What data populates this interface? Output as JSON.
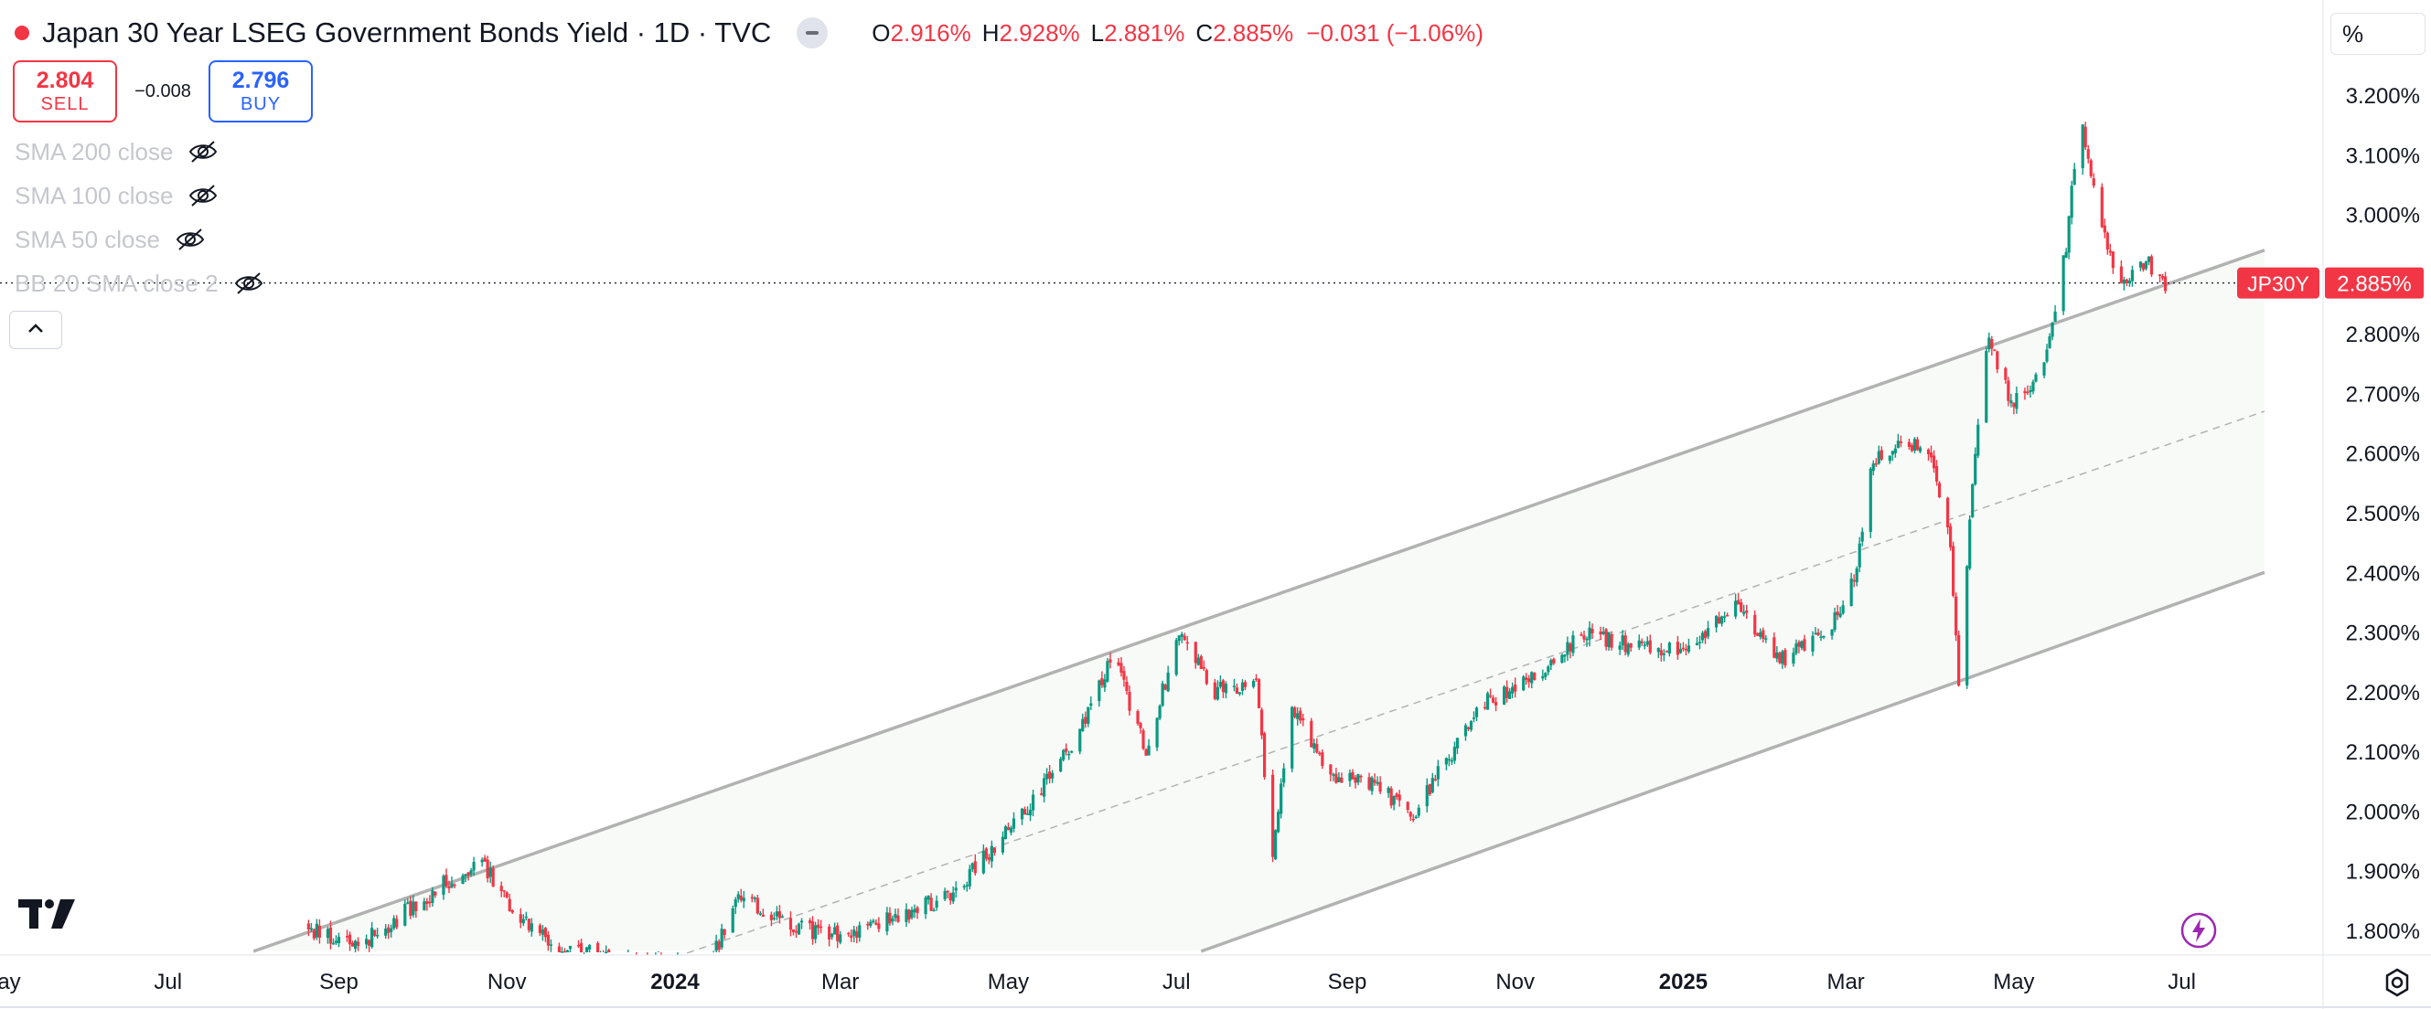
{
  "header": {
    "title": "Japan 30 Year LSEG Government Bonds Yield · 1D · TVC",
    "ohlc": [
      {
        "key": "O",
        "value": "2.916%"
      },
      {
        "key": "H",
        "value": "2.928%"
      },
      {
        "key": "L",
        "value": "2.881%"
      },
      {
        "key": "C",
        "value": "2.885%"
      }
    ],
    "change": "−0.031 (−1.06%)"
  },
  "trade": {
    "sell_price": "2.804",
    "sell_label": "SELL",
    "spread": "−0.008",
    "buy_price": "2.796",
    "buy_label": "BUY"
  },
  "indicators": [
    {
      "label": "SMA 200 close"
    },
    {
      "label": "SMA 100 close"
    },
    {
      "label": "SMA 50 close"
    },
    {
      "label": "BB 20 SMA close 2"
    }
  ],
  "axis_unit": "%",
  "colors": {
    "up": "#089981",
    "down": "#f23645",
    "channel": "#b2b2b2",
    "fill": "#f8faf8"
  },
  "icons": {
    "logo": "tradingview-logo-icon",
    "alert": "lightning-icon",
    "settings": "gear-icon"
  },
  "chart_data": {
    "type": "candlestick",
    "symbol_label": "JP30Y",
    "last_price_label": "2.885%",
    "last_price": 2.885,
    "x_range": [
      "2023-05-01",
      "2025-07-31"
    ],
    "ylim": [
      1.74,
      3.22
    ],
    "y_ticks": [
      {
        "value": 3.2,
        "label": "3.200%"
      },
      {
        "value": 3.1,
        "label": "3.100%"
      },
      {
        "value": 3.0,
        "label": "3.000%"
      },
      {
        "value": 2.8,
        "label": "2.800%"
      },
      {
        "value": 2.7,
        "label": "2.700%"
      },
      {
        "value": 2.6,
        "label": "2.600%"
      },
      {
        "value": 2.5,
        "label": "2.500%"
      },
      {
        "value": 2.4,
        "label": "2.400%"
      },
      {
        "value": 2.3,
        "label": "2.300%"
      },
      {
        "value": 2.2,
        "label": "2.200%"
      },
      {
        "value": 2.1,
        "label": "2.100%"
      },
      {
        "value": 2.0,
        "label": "2.000%"
      },
      {
        "value": 1.9,
        "label": "1.900%"
      },
      {
        "value": 1.8,
        "label": "1.800%"
      }
    ],
    "x_ticks": [
      {
        "date": "2023-05-01",
        "label": "May",
        "bold": false
      },
      {
        "date": "2023-07-01",
        "label": "Jul",
        "bold": false
      },
      {
        "date": "2023-09-01",
        "label": "Sep",
        "bold": false
      },
      {
        "date": "2023-11-01",
        "label": "Nov",
        "bold": false
      },
      {
        "date": "2024-01-01",
        "label": "2024",
        "bold": true
      },
      {
        "date": "2024-03-01",
        "label": "Mar",
        "bold": false
      },
      {
        "date": "2024-05-01",
        "label": "May",
        "bold": false
      },
      {
        "date": "2024-07-01",
        "label": "Jul",
        "bold": false
      },
      {
        "date": "2024-09-01",
        "label": "Sep",
        "bold": false
      },
      {
        "date": "2024-11-01",
        "label": "Nov",
        "bold": false
      },
      {
        "date": "2025-01-01",
        "label": "2025",
        "bold": true
      },
      {
        "date": "2025-03-01",
        "label": "Mar",
        "bold": false
      },
      {
        "date": "2025-05-01",
        "label": "May",
        "bold": false
      },
      {
        "date": "2025-07-01",
        "label": "Jul",
        "bold": false
      }
    ],
    "channel": {
      "upper": [
        {
          "date": "2023-08-01",
          "y": 1.765
        },
        {
          "date": "2025-07-31",
          "y": 2.94
        }
      ],
      "mid": [
        {
          "date": "2024-01-01",
          "y": 1.755
        },
        {
          "date": "2025-07-31",
          "y": 2.67
        }
      ],
      "lower": [
        {
          "date": "2024-07-10",
          "y": 1.765
        },
        {
          "date": "2025-07-31",
          "y": 2.4
        }
      ]
    },
    "price_anchors": [
      {
        "date": "2023-08-20",
        "y": 1.8
      },
      {
        "date": "2023-09-10",
        "y": 1.78
      },
      {
        "date": "2023-10-01",
        "y": 1.85
      },
      {
        "date": "2023-10-22",
        "y": 1.92
      },
      {
        "date": "2023-11-03",
        "y": 1.84
      },
      {
        "date": "2023-11-20",
        "y": 1.77
      },
      {
        "date": "2023-12-15",
        "y": 1.75
      },
      {
        "date": "2024-01-12",
        "y": 1.73
      },
      {
        "date": "2024-01-25",
        "y": 1.86
      },
      {
        "date": "2024-02-10",
        "y": 1.81
      },
      {
        "date": "2024-03-01",
        "y": 1.79
      },
      {
        "date": "2024-03-20",
        "y": 1.82
      },
      {
        "date": "2024-04-10",
        "y": 1.86
      },
      {
        "date": "2024-04-28",
        "y": 1.95
      },
      {
        "date": "2024-05-15",
        "y": 2.05
      },
      {
        "date": "2024-05-28",
        "y": 2.14
      },
      {
        "date": "2024-06-08",
        "y": 2.26
      },
      {
        "date": "2024-06-20",
        "y": 2.1
      },
      {
        "date": "2024-07-02",
        "y": 2.3
      },
      {
        "date": "2024-07-15",
        "y": 2.2
      },
      {
        "date": "2024-07-30",
        "y": 2.22
      },
      {
        "date": "2024-08-05",
        "y": 1.92
      },
      {
        "date": "2024-08-12",
        "y": 2.18
      },
      {
        "date": "2024-08-25",
        "y": 2.06
      },
      {
        "date": "2024-09-10",
        "y": 2.05
      },
      {
        "date": "2024-09-25",
        "y": 1.99
      },
      {
        "date": "2024-10-05",
        "y": 2.07
      },
      {
        "date": "2024-10-20",
        "y": 2.18
      },
      {
        "date": "2024-11-10",
        "y": 2.23
      },
      {
        "date": "2024-11-25",
        "y": 2.3
      },
      {
        "date": "2024-12-20",
        "y": 2.27
      },
      {
        "date": "2025-01-05",
        "y": 2.28
      },
      {
        "date": "2025-01-20",
        "y": 2.35
      },
      {
        "date": "2025-02-05",
        "y": 2.25
      },
      {
        "date": "2025-02-25",
        "y": 2.32
      },
      {
        "date": "2025-03-05",
        "y": 2.4
      },
      {
        "date": "2025-03-10",
        "y": 2.58
      },
      {
        "date": "2025-03-20",
        "y": 2.62
      },
      {
        "date": "2025-04-01",
        "y": 2.6
      },
      {
        "date": "2025-04-08",
        "y": 2.45
      },
      {
        "date": "2025-04-11",
        "y": 2.22
      },
      {
        "date": "2025-04-16",
        "y": 2.55
      },
      {
        "date": "2025-04-22",
        "y": 2.8
      },
      {
        "date": "2025-04-30",
        "y": 2.68
      },
      {
        "date": "2025-05-12",
        "y": 2.74
      },
      {
        "date": "2025-05-20",
        "y": 2.95
      },
      {
        "date": "2025-05-25",
        "y": 3.18
      },
      {
        "date": "2025-06-01",
        "y": 2.98
      },
      {
        "date": "2025-06-10",
        "y": 2.88
      },
      {
        "date": "2025-06-18",
        "y": 2.92
      },
      {
        "date": "2025-06-25",
        "y": 2.885
      }
    ]
  }
}
